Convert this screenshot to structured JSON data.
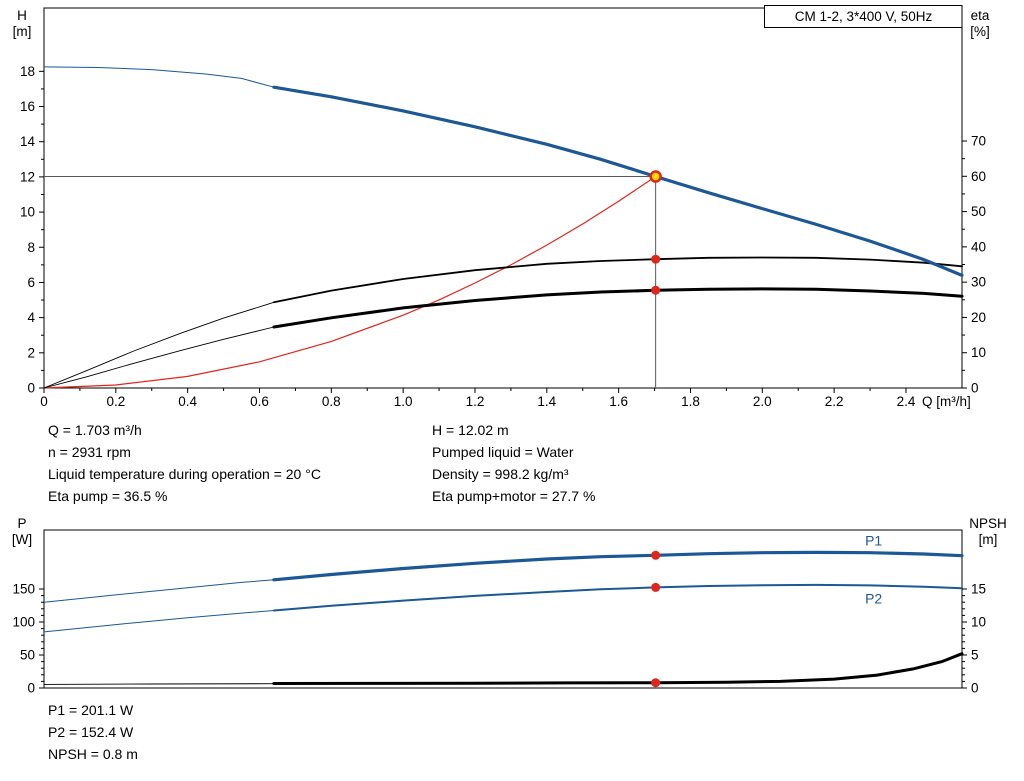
{
  "chart_data": [
    {
      "id": "hq",
      "type": "line",
      "title": "CM 1-2, 3*400 V, 50Hz",
      "x_axis": {
        "label": "Q [m³/h]",
        "min": 0,
        "max": 2.556,
        "minor_step": 0.1,
        "major_ticks": [
          [
            0,
            "0"
          ],
          [
            0.2,
            "0.2"
          ],
          [
            0.4,
            "0.4"
          ],
          [
            0.6,
            "0.6"
          ],
          [
            0.8,
            "0.8"
          ],
          [
            1,
            "1.0"
          ],
          [
            1.2,
            "1.2"
          ],
          [
            1.4,
            "1.4"
          ],
          [
            1.6,
            "1.6"
          ],
          [
            1.8,
            "1.8"
          ],
          [
            2,
            "2.0"
          ],
          [
            2.2,
            "2.2"
          ],
          [
            2.4,
            "2.4"
          ]
        ]
      },
      "y_left": {
        "name": "H",
        "unit": "[m]",
        "min": 0,
        "max": 21.6,
        "minor_step": 1,
        "major_ticks": [
          [
            0,
            "0"
          ],
          [
            2,
            "2"
          ],
          [
            4,
            "4"
          ],
          [
            6,
            "6"
          ],
          [
            8,
            "8"
          ],
          [
            10,
            "10"
          ],
          [
            12,
            "12"
          ],
          [
            14,
            "14"
          ],
          [
            16,
            "16"
          ],
          [
            18,
            "18"
          ]
        ]
      },
      "y_right": {
        "name": "eta",
        "unit": "[%]",
        "min": 0,
        "max": 107.7,
        "minor_step": 5,
        "major_ticks": [
          [
            0,
            "0"
          ],
          [
            10,
            "10"
          ],
          [
            20,
            "20"
          ],
          [
            30,
            "30"
          ],
          [
            40,
            "40"
          ],
          [
            50,
            "50"
          ],
          [
            60,
            "60"
          ],
          [
            70,
            "70"
          ]
        ]
      },
      "series": [
        {
          "name": "system-curve",
          "axis": "left",
          "color": "#e0251b",
          "width": 1.2,
          "points": [
            [
              0,
              0
            ],
            [
              0.2,
              0.17
            ],
            [
              0.4,
              0.66
            ],
            [
              0.6,
              1.49
            ],
            [
              0.8,
              2.65
            ],
            [
              1,
              4.14
            ],
            [
              1.1,
              5.01
            ],
            [
              1.2,
              5.97
            ],
            [
              1.3,
              7.0
            ],
            [
              1.4,
              8.12
            ],
            [
              1.5,
              9.32
            ],
            [
              1.6,
              10.61
            ],
            [
              1.703,
              12.02
            ]
          ]
        },
        {
          "name": "eta-pump",
          "axis": "right",
          "color": "#000000",
          "width": 1.8,
          "thin_width": 0.9,
          "thin_points": [
            [
              0,
              0
            ],
            [
              0.12,
              5
            ],
            [
              0.25,
              10.5
            ],
            [
              0.38,
              15.5
            ],
            [
              0.5,
              19.8
            ],
            [
              0.64,
              24.3
            ]
          ],
          "points": [
            [
              0.64,
              24.3
            ],
            [
              0.8,
              27.6
            ],
            [
              1,
              30.9
            ],
            [
              1.2,
              33.4
            ],
            [
              1.4,
              35.2
            ],
            [
              1.55,
              36
            ],
            [
              1.703,
              36.5
            ],
            [
              1.85,
              36.9
            ],
            [
              2,
              37
            ],
            [
              2.15,
              36.9
            ],
            [
              2.3,
              36.4
            ],
            [
              2.45,
              35.5
            ],
            [
              2.556,
              34.5
            ]
          ]
        },
        {
          "name": "eta-pump-motor",
          "axis": "right",
          "color": "#000000",
          "width": 3,
          "thin_width": 0.9,
          "thin_points": [
            [
              0,
              0
            ],
            [
              0.12,
              3.2
            ],
            [
              0.25,
              7
            ],
            [
              0.38,
              10.6
            ],
            [
              0.5,
              13.8
            ],
            [
              0.64,
              17.3
            ]
          ],
          "points": [
            [
              0.64,
              17.3
            ],
            [
              0.8,
              19.9
            ],
            [
              1,
              22.7
            ],
            [
              1.2,
              24.8
            ],
            [
              1.4,
              26.4
            ],
            [
              1.55,
              27.2
            ],
            [
              1.703,
              27.7
            ],
            [
              1.85,
              28
            ],
            [
              2,
              28.1
            ],
            [
              2.15,
              28
            ],
            [
              2.3,
              27.5
            ],
            [
              2.45,
              26.8
            ],
            [
              2.556,
              26
            ]
          ]
        },
        {
          "name": "head-curve",
          "axis": "left",
          "color": "#1c5796",
          "width": 3.2,
          "thin_width": 1,
          "thin_points": [
            [
              0,
              18.25
            ],
            [
              0.15,
              18.22
            ],
            [
              0.3,
              18.1
            ],
            [
              0.45,
              17.85
            ],
            [
              0.55,
              17.6
            ],
            [
              0.64,
              17.1
            ]
          ],
          "points": [
            [
              0.64,
              17.1
            ],
            [
              0.8,
              16.55
            ],
            [
              1,
              15.75
            ],
            [
              1.2,
              14.85
            ],
            [
              1.4,
              13.85
            ],
            [
              1.55,
              13
            ],
            [
              1.703,
              12.02
            ],
            [
              1.85,
              11.1
            ],
            [
              2,
              10.2
            ],
            [
              2.15,
              9.3
            ],
            [
              2.3,
              8.35
            ],
            [
              2.45,
              7.3
            ],
            [
              2.556,
              6.4
            ]
          ]
        }
      ],
      "crosshair": {
        "x": 1.703,
        "y": 12.02
      },
      "markers": [
        {
          "x": 1.703,
          "y": 36.5,
          "axis": "right",
          "color": "#e0251b"
        },
        {
          "x": 1.703,
          "y": 27.7,
          "axis": "right",
          "color": "#e0251b"
        }
      ],
      "duty_point": {
        "x": 1.703,
        "y": 12.02,
        "fill": "#ffd800",
        "stroke": "#e0251b"
      }
    },
    {
      "id": "power-npsh",
      "type": "line",
      "x_axis": {
        "min": 0,
        "max": 2.556,
        "major_ticks": []
      },
      "y_left": {
        "name": "P",
        "unit": "[W]",
        "min": 0,
        "max": 239.4,
        "minor_step": 10,
        "major_ticks": [
          [
            0,
            "0"
          ],
          [
            50,
            "50"
          ],
          [
            100,
            "100"
          ],
          [
            150,
            "150"
          ]
        ]
      },
      "y_right": {
        "name": "NPSH",
        "unit": "[m]",
        "min": 0,
        "max": 23.94,
        "minor_step": 1,
        "major_ticks": [
          [
            0,
            "0"
          ],
          [
            5,
            "5"
          ],
          [
            10,
            "10"
          ],
          [
            15,
            "15"
          ]
        ]
      },
      "series": [
        {
          "name": "p1",
          "axis": "left",
          "color": "#1c5796",
          "width": 3.2,
          "thin_width": 1,
          "label": "P1",
          "label_pos": [
            2.31,
            216
          ],
          "thin_points": [
            [
              0,
              130
            ],
            [
              0.2,
              141
            ],
            [
              0.4,
              152
            ],
            [
              0.55,
              160
            ],
            [
              0.64,
              164
            ]
          ],
          "points": [
            [
              0.64,
              164
            ],
            [
              0.8,
              172
            ],
            [
              1,
              181
            ],
            [
              1.2,
              189
            ],
            [
              1.4,
              195.5
            ],
            [
              1.55,
              199
            ],
            [
              1.703,
              201.1
            ],
            [
              1.85,
              203.5
            ],
            [
              2,
              205
            ],
            [
              2.15,
              205.5
            ],
            [
              2.3,
              205
            ],
            [
              2.45,
              203
            ],
            [
              2.556,
              200.5
            ]
          ]
        },
        {
          "name": "p2",
          "axis": "left",
          "color": "#1c5796",
          "width": 2,
          "thin_width": 1,
          "label": "P2",
          "label_pos": [
            2.31,
            128
          ],
          "thin_points": [
            [
              0,
              85
            ],
            [
              0.2,
              96
            ],
            [
              0.4,
              106.5
            ],
            [
              0.55,
              113.5
            ],
            [
              0.64,
              117.5
            ]
          ],
          "points": [
            [
              0.64,
              117.5
            ],
            [
              0.8,
              124.5
            ],
            [
              1,
              132.5
            ],
            [
              1.2,
              139.5
            ],
            [
              1.4,
              145.5
            ],
            [
              1.55,
              149.5
            ],
            [
              1.703,
              152.4
            ],
            [
              1.85,
              154.5
            ],
            [
              2,
              155.8
            ],
            [
              2.15,
              156.2
            ],
            [
              2.3,
              155.5
            ],
            [
              2.45,
              153.5
            ],
            [
              2.556,
              151
            ]
          ]
        },
        {
          "name": "npsh",
          "axis": "right",
          "color": "#000000",
          "width": 3,
          "thin_width": 0.9,
          "thin_points": [
            [
              0,
              0.55
            ],
            [
              0.3,
              0.6
            ],
            [
              0.64,
              0.65
            ]
          ],
          "points": [
            [
              0.64,
              0.68
            ],
            [
              0.9,
              0.7
            ],
            [
              1.2,
              0.73
            ],
            [
              1.45,
              0.77
            ],
            [
              1.703,
              0.8
            ],
            [
              1.9,
              0.88
            ],
            [
              2.05,
              1
            ],
            [
              2.2,
              1.35
            ],
            [
              2.32,
              1.95
            ],
            [
              2.42,
              2.9
            ],
            [
              2.5,
              4
            ],
            [
              2.556,
              5.2
            ]
          ]
        }
      ],
      "markers": [
        {
          "x": 1.703,
          "y": 201.1,
          "axis": "left",
          "color": "#e0251b"
        },
        {
          "x": 1.703,
          "y": 152.4,
          "axis": "left",
          "color": "#e0251b"
        },
        {
          "x": 1.703,
          "y": 0.8,
          "axis": "right",
          "color": "#e0251b"
        }
      ]
    }
  ],
  "info_top": {
    "left": [
      "Q = 1.703 m³/h",
      "n = 2931 rpm",
      "Liquid temperature during operation = 20 °C",
      "Eta pump = 36.5 %"
    ],
    "right": [
      "H = 12.02 m",
      "Pumped liquid = Water",
      "Density = 998.2 kg/m³",
      "Eta pump+motor = 27.7 %"
    ]
  },
  "info_bottom": [
    "P1 = 201.1 W",
    "P2 = 152.4 W",
    "NPSH = 0.8 m"
  ],
  "colors": {
    "curve_blue": "#1c5796",
    "curve_red": "#e0251b",
    "duty_fill": "#ffd800",
    "crosshair_gray": "#595959"
  }
}
